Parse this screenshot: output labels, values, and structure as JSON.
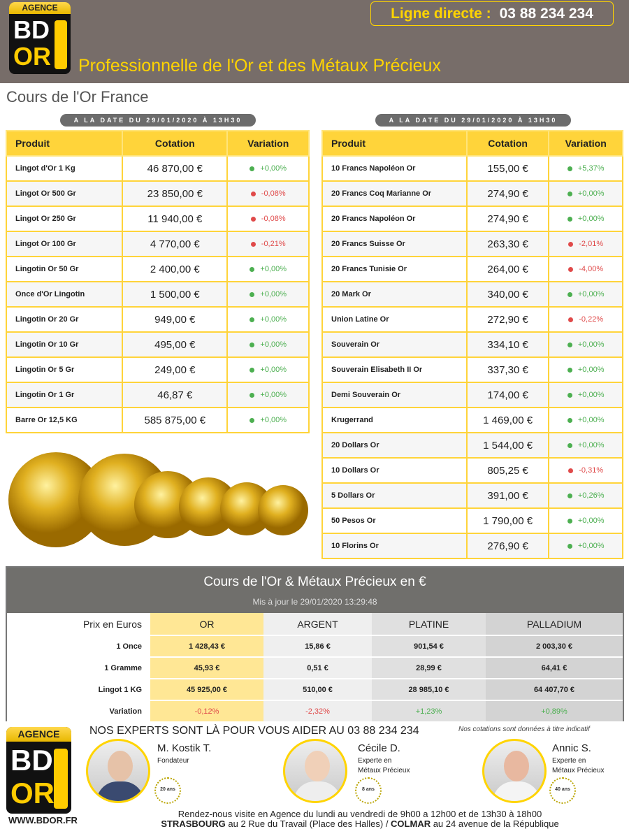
{
  "header": {
    "logo": {
      "agence": "AGENCE",
      "bd": "BD",
      "or": "OR"
    },
    "ligne_label": "Ligne directe :",
    "phone": "03 88 234 234",
    "tagline": "Professionnelle de l'Or et des Métaux Précieux"
  },
  "page_title": "Cours de l'Or France",
  "date_label": "A LA DATE DU 29/01/2020 À 13H30",
  "columns": {
    "produit": "Produit",
    "cotation": "Cotation",
    "variation": "Variation"
  },
  "colors": {
    "accent": "#ffd43a",
    "header_bg": "#776d69",
    "up": "#4caf50",
    "down": "#e04a4a"
  },
  "left_table": [
    {
      "produit": "Lingot d'Or 1 Kg",
      "cotation": "46 870,00 €",
      "variation": "+0,00%",
      "trend": "up"
    },
    {
      "produit": "Lingot Or 500 Gr",
      "cotation": "23 850,00 €",
      "variation": "-0,08%",
      "trend": "down"
    },
    {
      "produit": "Lingot Or 250 Gr",
      "cotation": "11 940,00 €",
      "variation": "-0,08%",
      "trend": "down"
    },
    {
      "produit": "Lingot Or 100 Gr",
      "cotation": "4 770,00 €",
      "variation": "-0,21%",
      "trend": "down"
    },
    {
      "produit": "Lingotin Or 50 Gr",
      "cotation": "2 400,00 €",
      "variation": "+0,00%",
      "trend": "up"
    },
    {
      "produit": "Once d'Or Lingotin",
      "cotation": "1 500,00 €",
      "variation": "+0,00%",
      "trend": "up"
    },
    {
      "produit": "Lingotin Or 20 Gr",
      "cotation": "949,00 €",
      "variation": "+0,00%",
      "trend": "up"
    },
    {
      "produit": "Lingotin Or 10 Gr",
      "cotation": "495,00 €",
      "variation": "+0,00%",
      "trend": "up"
    },
    {
      "produit": "Lingotin Or 5 Gr",
      "cotation": "249,00 €",
      "variation": "+0,00%",
      "trend": "up"
    },
    {
      "produit": "Lingotin Or 1 Gr",
      "cotation": "46,87 €",
      "variation": "+0,00%",
      "trend": "up"
    },
    {
      "produit": "Barre Or 12,5 KG",
      "cotation": "585 875,00 €",
      "variation": "+0,00%",
      "trend": "up"
    }
  ],
  "right_table": [
    {
      "produit": "10 Francs Napoléon Or",
      "cotation": "155,00 €",
      "variation": "+5,37%",
      "trend": "up"
    },
    {
      "produit": "20 Francs Coq Marianne Or",
      "cotation": "274,90 €",
      "variation": "+0,00%",
      "trend": "up"
    },
    {
      "produit": "20 Francs Napoléon Or",
      "cotation": "274,90 €",
      "variation": "+0,00%",
      "trend": "up"
    },
    {
      "produit": "20 Francs Suisse Or",
      "cotation": "263,30 €",
      "variation": "-2,01%",
      "trend": "down"
    },
    {
      "produit": "20 Francs Tunisie Or",
      "cotation": "264,00 €",
      "variation": "-4,00%",
      "trend": "down"
    },
    {
      "produit": "20 Mark Or",
      "cotation": "340,00 €",
      "variation": "+0,00%",
      "trend": "up"
    },
    {
      "produit": "Union Latine Or",
      "cotation": "272,90 €",
      "variation": "-0,22%",
      "trend": "down"
    },
    {
      "produit": "Souverain Or",
      "cotation": "334,10 €",
      "variation": "+0,00%",
      "trend": "up"
    },
    {
      "produit": "Souverain Elisabeth II Or",
      "cotation": "337,30 €",
      "variation": "+0,00%",
      "trend": "up"
    },
    {
      "produit": "Demi Souverain Or",
      "cotation": "174,00 €",
      "variation": "+0,00%",
      "trend": "up"
    },
    {
      "produit": "Krugerrand",
      "cotation": "1 469,00 €",
      "variation": "+0,00%",
      "trend": "up"
    },
    {
      "produit": "20 Dollars Or",
      "cotation": "1 544,00 €",
      "variation": "+0,00%",
      "trend": "up"
    },
    {
      "produit": "10 Dollars Or",
      "cotation": "805,25 €",
      "variation": "-0,31%",
      "trend": "down"
    },
    {
      "produit": "5 Dollars Or",
      "cotation": "391,00 €",
      "variation": "+0,26%",
      "trend": "up"
    },
    {
      "produit": "50 Pesos Or",
      "cotation": "1 790,00 €",
      "variation": "+0,00%",
      "trend": "up"
    },
    {
      "produit": "10 Florins Or",
      "cotation": "276,90 €",
      "variation": "+0,00%",
      "trend": "up"
    }
  ],
  "metals": {
    "title": "Cours de l'Or & Métaux Précieux en €",
    "updated": "Mis à jour le 29/01/2020 13:29:48",
    "headers": [
      "Prix en Euros",
      "OR",
      "ARGENT",
      "PLATINE",
      "PALLADIUM"
    ],
    "rows": [
      {
        "label": "1 Once",
        "values": [
          "1 428,43 €",
          "15,86 €",
          "901,54 €",
          "2 003,30 €"
        ]
      },
      {
        "label": "1 Gramme",
        "values": [
          "45,93 €",
          "0,51 €",
          "28,99 €",
          "64,41 €"
        ]
      },
      {
        "label": "Lingot 1 KG",
        "values": [
          "45 925,00 €",
          "510,00 €",
          "28 985,10 €",
          "64 407,70 €"
        ]
      }
    ],
    "variation": {
      "label": "Variation",
      "values": [
        {
          "v": "-0,12%",
          "trend": "down"
        },
        {
          "v": "-2,32%",
          "trend": "down"
        },
        {
          "v": "+1,23%",
          "trend": "up"
        },
        {
          "v": "+0,89%",
          "trend": "up"
        }
      ]
    }
  },
  "footer": {
    "experts": "NOS EXPERTS SONT LÀ POUR VOUS AIDER AU 03 88 234 234",
    "note": "Nos cotations sont données à titre indicatif",
    "people": [
      {
        "name": "M. Kostik T.",
        "role1": "Fondateur",
        "role2": "",
        "badge": "20 ans"
      },
      {
        "name": "Cécile D.",
        "role1": "Experte en",
        "role2": "Métaux Précieux",
        "badge": "8 ans"
      },
      {
        "name": "Annic S.",
        "role1": "Experte en",
        "role2": "Métaux Précieux",
        "badge": "40 ans"
      }
    ],
    "hours": "Rendez-nous visite en Agence du lundi au vendredi de 9h00 a 12h00 et de 13h30 à 18h00",
    "city1": "STRASBOURG",
    "addr1": " au 2 Rue du Travail (Place des Halles) / ",
    "city2": "COLMAR",
    "addr2": " au 24 avenue de la République",
    "website": "WWW.BDOR.FR"
  }
}
